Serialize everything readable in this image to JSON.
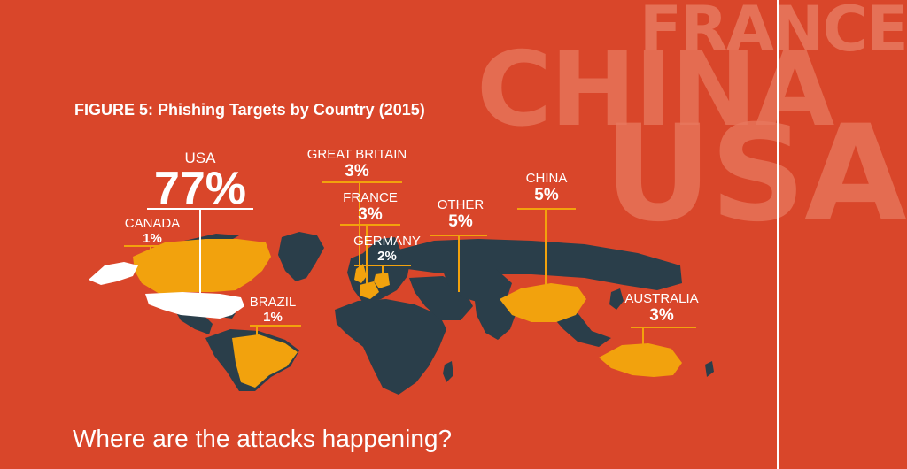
{
  "watermark": {
    "france": "FRANCE",
    "china": "CHINA",
    "usa": "USA"
  },
  "chart_data": {
    "type": "map",
    "title": "FIGURE 5: Phishing Targets by Country (2015)",
    "subtitle": "Where are the attacks happening?",
    "units": "%",
    "regions": [
      {
        "name": "USA",
        "value": 77,
        "label": "77%"
      },
      {
        "name": "CANADA",
        "value": 1,
        "label": "1%"
      },
      {
        "name": "BRAZIL",
        "value": 1,
        "label": "1%"
      },
      {
        "name": "GREAT BRITAIN",
        "value": 3,
        "label": "3%"
      },
      {
        "name": "FRANCE",
        "value": 3,
        "label": "3%"
      },
      {
        "name": "GERMANY",
        "value": 2,
        "label": "2%"
      },
      {
        "name": "OTHER",
        "value": 5,
        "label": "5%"
      },
      {
        "name": "CHINA",
        "value": 5,
        "label": "5%"
      },
      {
        "name": "AUSTRALIA",
        "value": 3,
        "label": "3%"
      }
    ]
  },
  "colors": {
    "background": "#d9462a",
    "land": "#2a3e4a",
    "highlight": "#f2a20d",
    "usa": "#ffffff",
    "leader": "#f2a20d",
    "text": "#ffffff"
  }
}
